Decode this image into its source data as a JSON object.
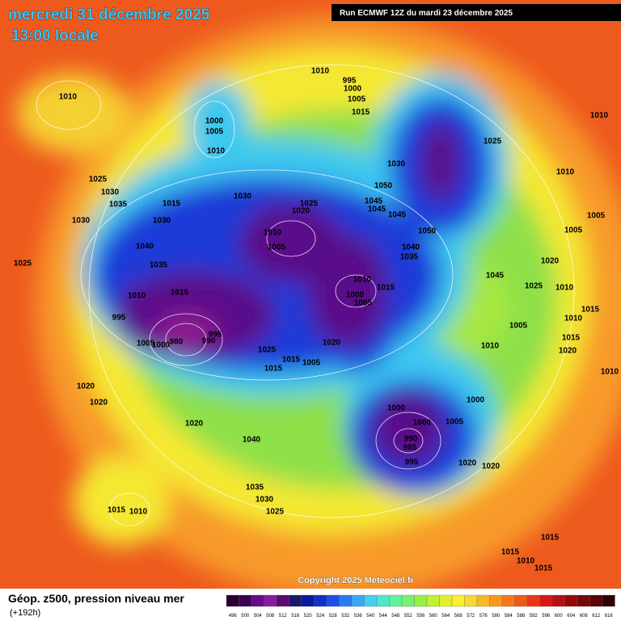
{
  "header": {
    "title": "mercredi 31 décembre 2025",
    "time": "13:00 locale",
    "run": "Run ECMWF 12Z du mardi 23 décembre 2025"
  },
  "map": {
    "copyright": "Copyright 2025 Meteociel.fr",
    "pressure_labels": [
      1010,
      1010,
      995,
      1000,
      1005,
      1015,
      1000,
      1005,
      1010,
      1010,
      1025,
      1030,
      1010,
      1025,
      1030,
      1035,
      1015,
      1030,
      1050,
      1045,
      1045,
      1045,
      1020,
      1025,
      1030,
      1030,
      1010,
      1005,
      1050,
      1040,
      1035,
      1005,
      1005,
      1040,
      1035,
      1025,
      1020,
      1045,
      1025,
      1010,
      1010,
      1015,
      1000,
      1005,
      1015,
      1010,
      995,
      1015,
      1010,
      1005,
      1015,
      1020,
      1010,
      995,
      990,
      980,
      1000,
      1005,
      1025,
      1020,
      1015,
      1005,
      1015,
      1020,
      1020,
      1000,
      1000,
      1000,
      1005,
      990,
      985,
      995,
      1020,
      1040,
      1020,
      1020,
      1035,
      1030,
      1025,
      1015,
      1010,
      1015,
      1015,
      1010,
      1015,
      1010
    ]
  },
  "legend": {
    "title": "Géop. z500, pression niveau mer",
    "lead_time": "(+192h)",
    "scale": [
      496,
      500,
      504,
      508,
      512,
      516,
      520,
      524,
      528,
      532,
      536,
      540,
      544,
      548,
      552,
      556,
      560,
      564,
      568,
      572,
      576,
      580,
      584,
      588,
      592,
      596,
      600,
      604,
      608,
      612,
      616
    ],
    "colors": [
      "#2a0030",
      "#3c0050",
      "#6a0a8a",
      "#8a1aa0",
      "#5a0a70",
      "#1a1a6a",
      "#0a1a9a",
      "#1030c8",
      "#1a50e8",
      "#2a7af0",
      "#3aa8f8",
      "#40d0f0",
      "#50e8c8",
      "#60f0a0",
      "#78f070",
      "#98f040",
      "#c0f030",
      "#e0f030",
      "#f8f030",
      "#f8d830",
      "#f8b828",
      "#f89820",
      "#f87818",
      "#f05818",
      "#e83818",
      "#d81818",
      "#b81010",
      "#980808",
      "#780808",
      "#580404",
      "#300000"
    ]
  }
}
